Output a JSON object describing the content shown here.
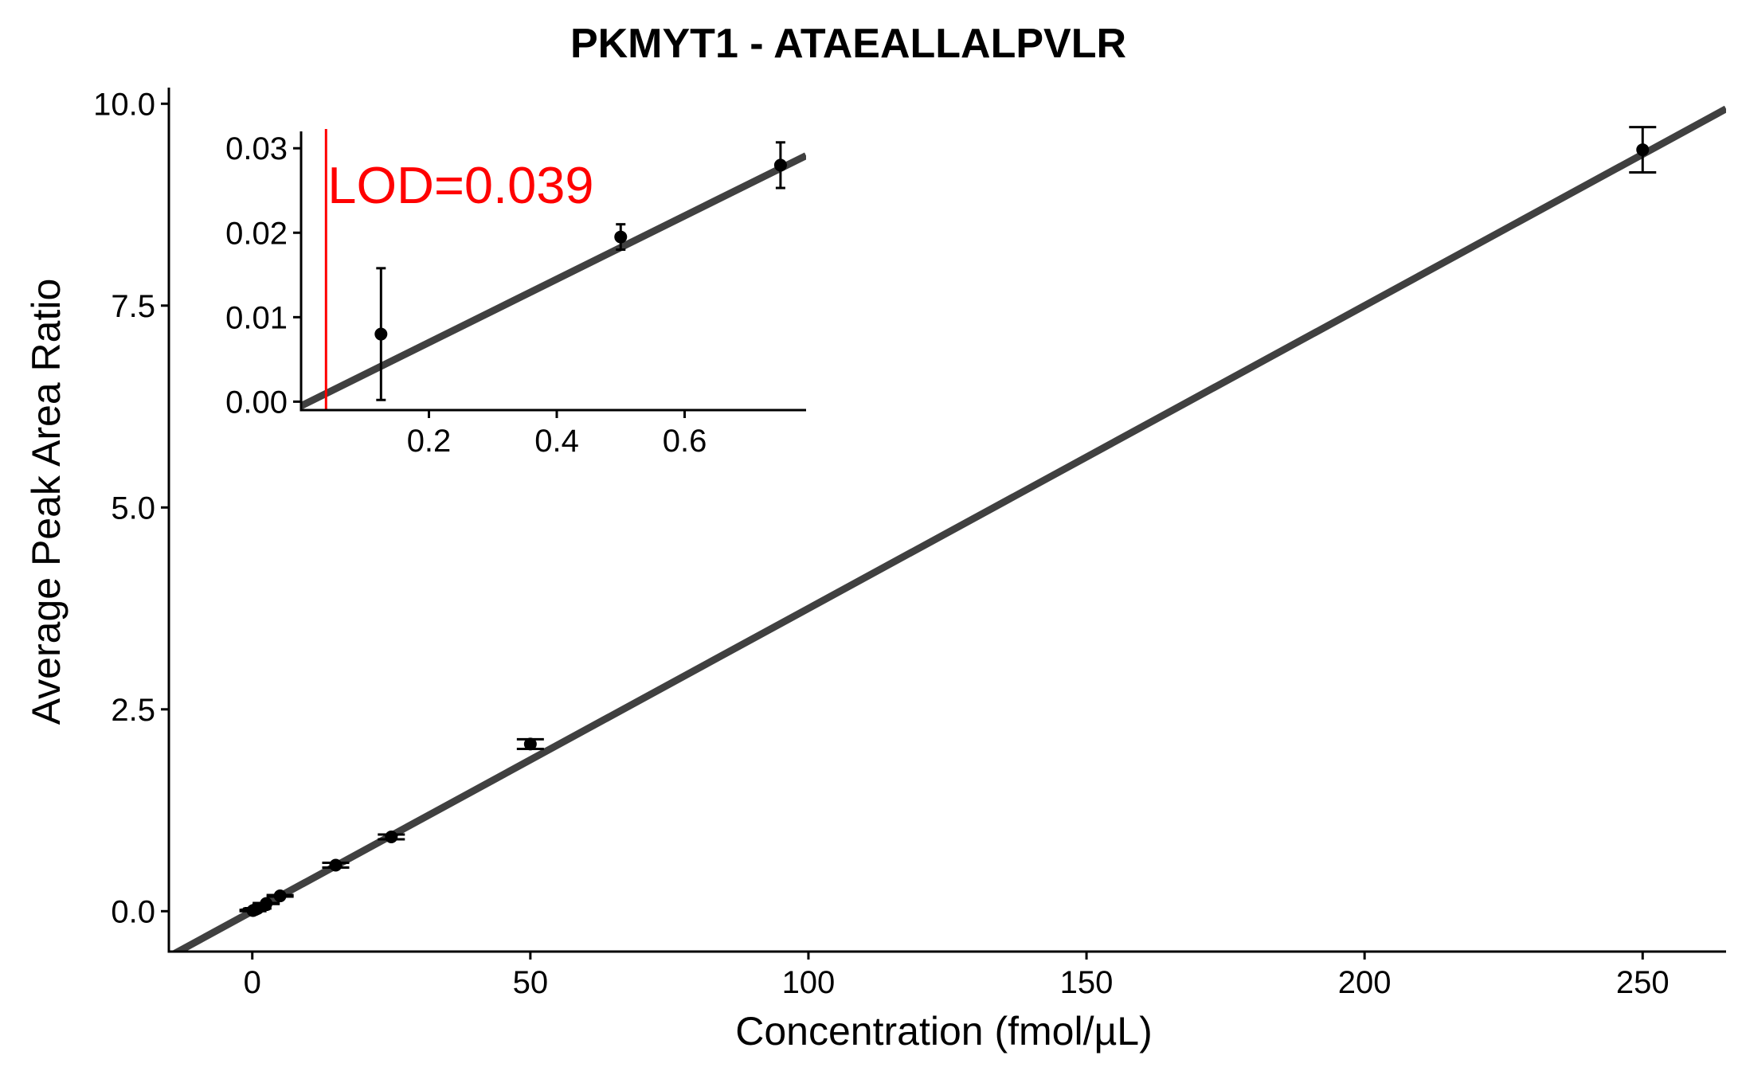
{
  "chart_data": [
    {
      "type": "scatter",
      "title": "PKMYT1 - ATAEALLALPVLR",
      "xlabel": "Concentration (fmol/µL)",
      "ylabel": "Average Peak Area Ratio",
      "xlim": [
        -15,
        265
      ],
      "ylim": [
        -0.5,
        10.2
      ],
      "x_ticks": [
        0,
        50,
        100,
        150,
        200,
        250
      ],
      "x_tick_labels": [
        "0",
        "50",
        "100",
        "150",
        "200",
        "250"
      ],
      "y_ticks": [
        0,
        2.5,
        5,
        7.5,
        10
      ],
      "y_tick_labels": [
        "0.0",
        "2.5",
        "5.0",
        "7.5",
        "10.0"
      ],
      "grid": false,
      "points": [
        {
          "x": 0.125,
          "y": 0.008,
          "err": 0.008
        },
        {
          "x": 0.5,
          "y": 0.019,
          "err": 0.0015
        },
        {
          "x": 0.75,
          "y": 0.028,
          "err": 0.0028
        },
        {
          "x": 1,
          "y": 0.035,
          "err": 0.003
        },
        {
          "x": 2.5,
          "y": 0.095,
          "err": 0.006
        },
        {
          "x": 5,
          "y": 0.19,
          "err": 0.01
        },
        {
          "x": 15,
          "y": 0.57,
          "err": 0.03
        },
        {
          "x": 25,
          "y": 0.92,
          "err": 0.03
        },
        {
          "x": 50,
          "y": 2.07,
          "err": 0.06
        },
        {
          "x": 250,
          "y": 9.43,
          "err": 0.28
        }
      ],
      "fit_line": {
        "slope": 0.0375,
        "intercept": -0.0005,
        "color": "#404040"
      },
      "point_color": "#000000"
    },
    {
      "type": "scatter",
      "title": "",
      "xlabel": "",
      "ylabel": "",
      "xlim": [
        0,
        0.79
      ],
      "ylim": [
        -0.001,
        0.032
      ],
      "x_ticks": [
        0.2,
        0.4,
        0.6
      ],
      "x_tick_labels": [
        "0.2",
        "0.4",
        "0.6"
      ],
      "y_ticks": [
        0,
        0.01,
        0.02,
        0.03
      ],
      "y_tick_labels": [
        "0.00",
        "0.01",
        "0.02",
        "0.03"
      ],
      "grid": false,
      "points": [
        {
          "x": 0.125,
          "y": 0.008,
          "err": 0.0078
        },
        {
          "x": 0.5,
          "y": 0.0195,
          "err": 0.0015
        },
        {
          "x": 0.75,
          "y": 0.028,
          "err": 0.0027
        }
      ],
      "fit_line": {
        "slope": 0.0375,
        "intercept": -0.0005,
        "color": "#404040"
      },
      "lod": {
        "x": 0.039,
        "label": "LOD=0.039",
        "color": "#ff0000"
      }
    }
  ]
}
